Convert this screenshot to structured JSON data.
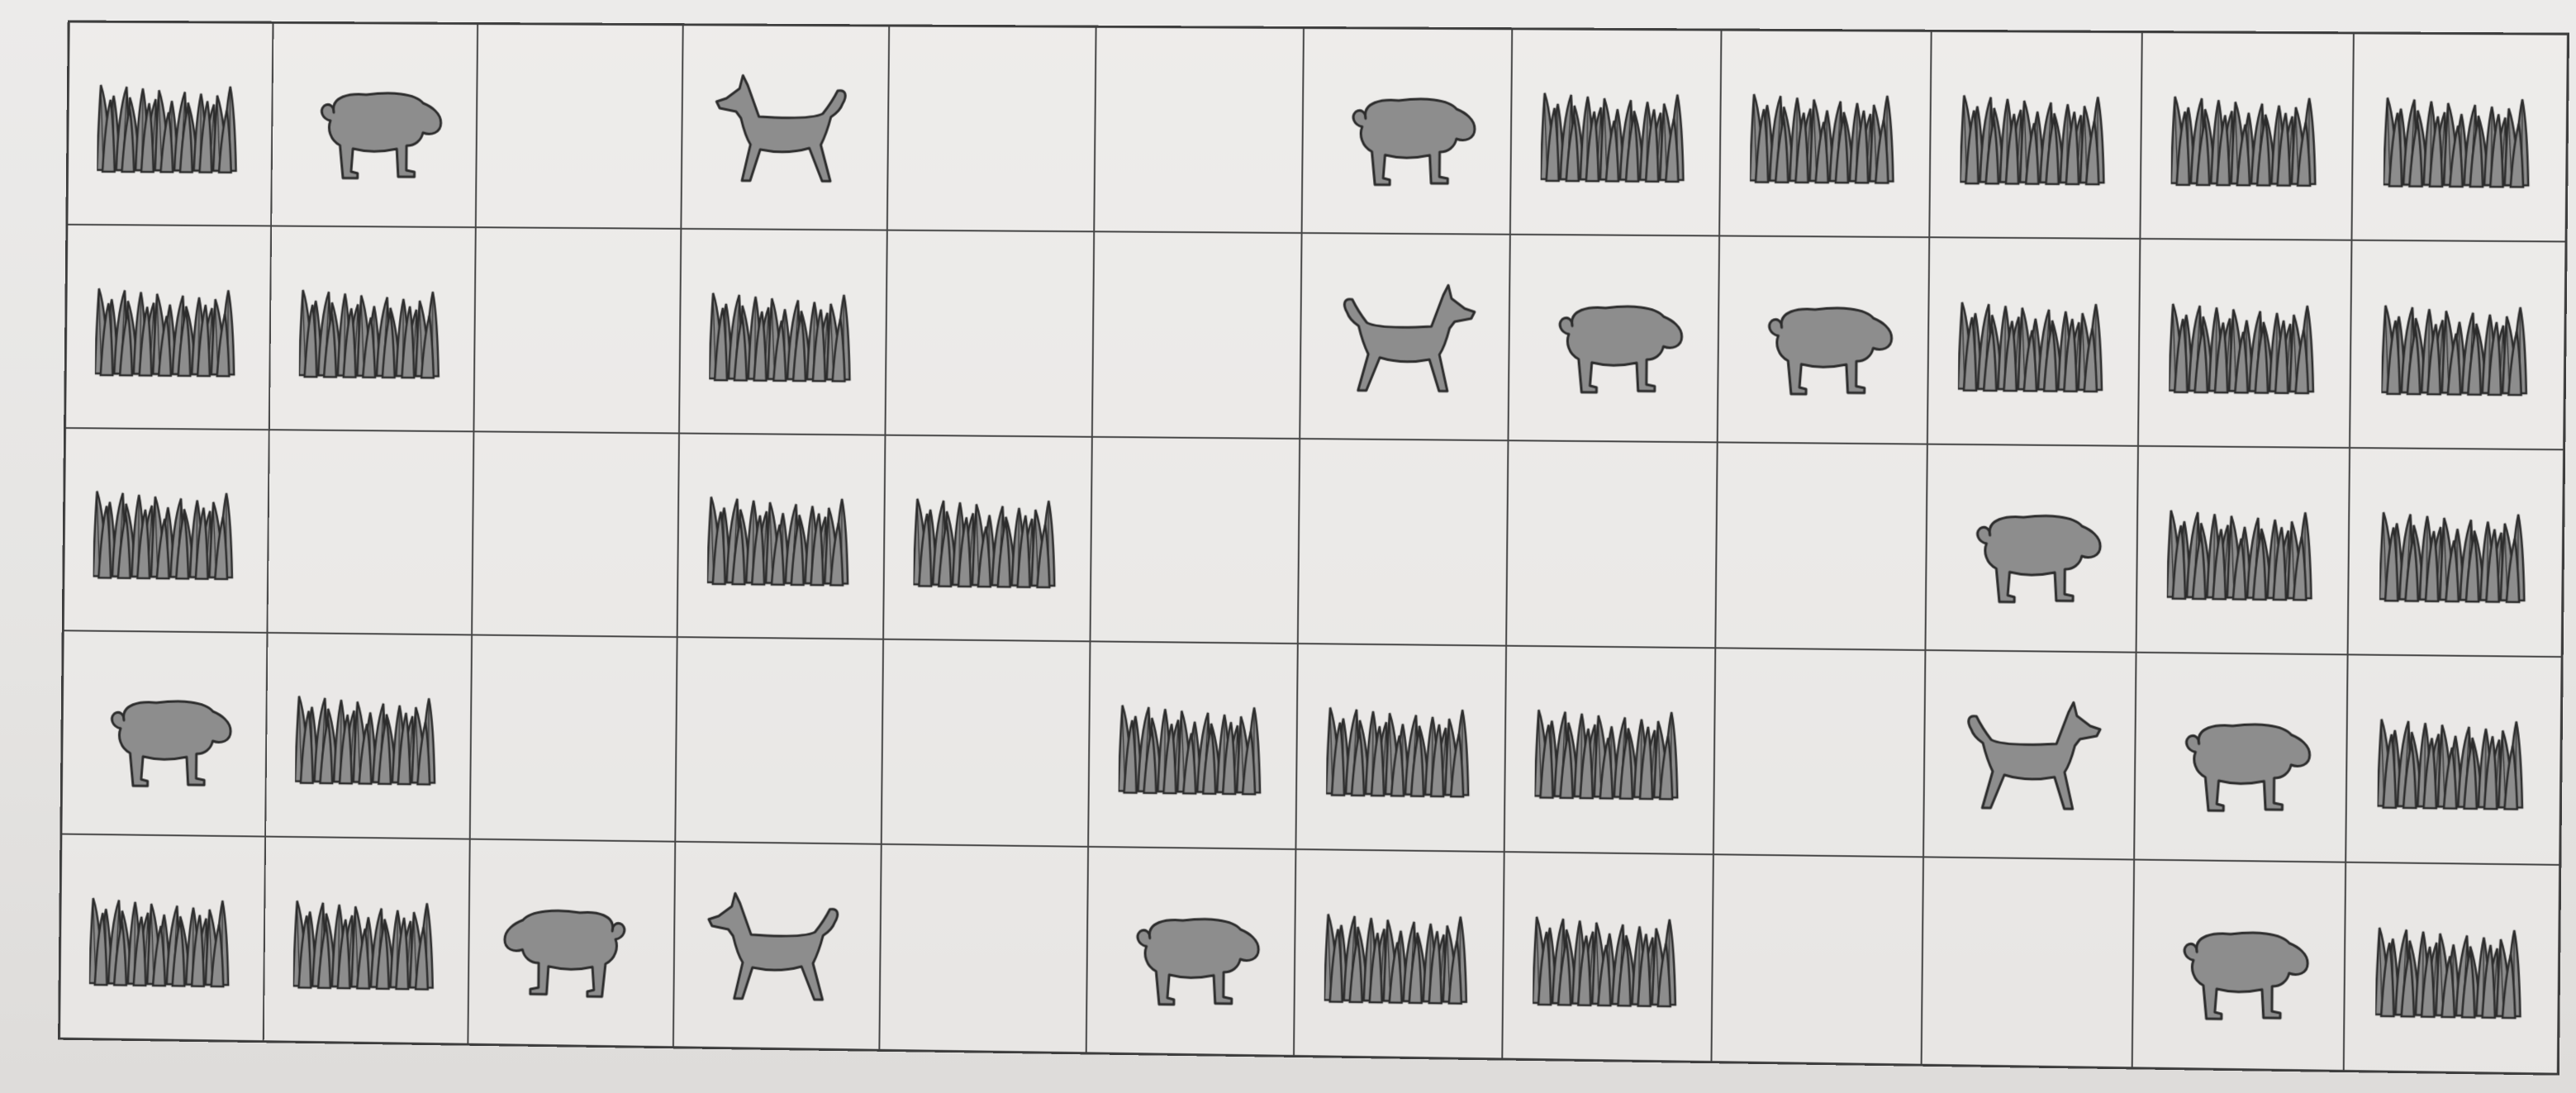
{
  "board": {
    "rows": 5,
    "columns": 12,
    "cells": [
      [
        "grass",
        "sheep-right",
        "empty",
        "dog-left",
        "empty",
        "empty",
        "sheep-right",
        "grass",
        "grass",
        "grass",
        "grass",
        "grass"
      ],
      [
        "grass",
        "grass",
        "empty",
        "grass",
        "empty",
        "empty",
        "dog-right",
        "sheep-right",
        "sheep-right",
        "grass",
        "grass",
        "grass"
      ],
      [
        "grass",
        "empty",
        "empty",
        "grass",
        "grass",
        "empty",
        "empty",
        "empty",
        "empty",
        "sheep-right",
        "grass",
        "grass"
      ],
      [
        "sheep-right",
        "grass",
        "empty",
        "empty",
        "empty",
        "grass",
        "grass",
        "grass",
        "empty",
        "dog-right",
        "sheep-right",
        "grass"
      ],
      [
        "grass",
        "grass",
        "sheep-left",
        "dog-left",
        "empty",
        "sheep-right",
        "grass",
        "grass",
        "empty",
        "empty",
        "sheep-right",
        "grass"
      ]
    ]
  },
  "icons": {
    "grass": "grass-tuft-icon",
    "sheep": "sheep-icon",
    "dog": "dog-icon"
  },
  "colors": {
    "piece_fill": "#8d8d8d",
    "piece_outline": "#2c2c2c",
    "grid_line": "#454545"
  }
}
